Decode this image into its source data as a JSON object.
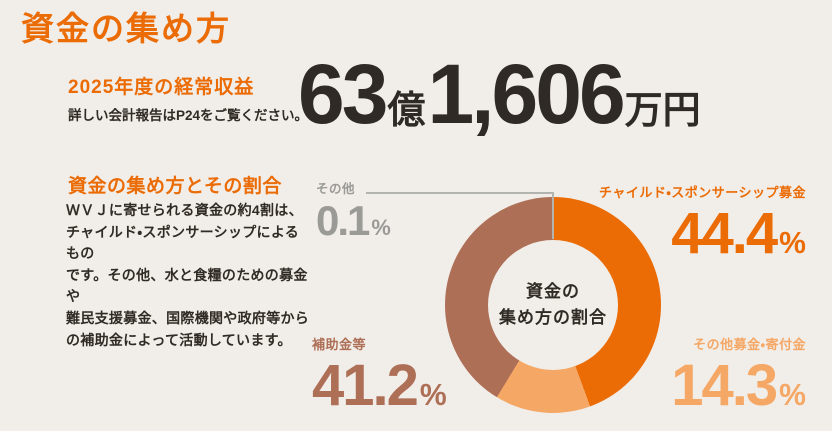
{
  "title": "資金の集め方",
  "revenue": {
    "heading": "2025年度の経常収益",
    "note": "詳しい会計報告はP24をご覧ください。",
    "amount_parts": [
      {
        "text": "63"
      },
      {
        "text": "億"
      },
      {
        "text": "1,606"
      },
      {
        "text": "万円"
      }
    ]
  },
  "breakdown": {
    "heading": "資金の集め方とその割合",
    "body": "ＷＶＪに寄せられる資金の約4割は、\nチャイルド・スポンサーシップによるもの\nです。その他、水と食糧のための募金や\n難民支援募金、国際機関や政府等から\nの補助金によって活動しています。"
  },
  "chart_data": {
    "type": "pie",
    "title": "資金の集め方の割合",
    "center_label": "資金の\n集め方の割合",
    "donut_hole_ratio": 0.6,
    "start_angle_deg": 0,
    "direction": "clockwise",
    "legend_position": "around",
    "segments": [
      {
        "label": "チャイルド・スポンサーシップ募金",
        "value": 44.4,
        "display": "44.4",
        "unit": "%",
        "color": "#eb6b05"
      },
      {
        "label": "その他募金・寄付金",
        "value": 14.3,
        "display": "14.3",
        "unit": "%",
        "color": "#f5a765"
      },
      {
        "label": "補助金等",
        "value": 41.2,
        "display": "41.2",
        "unit": "%",
        "color": "#ae6f57"
      },
      {
        "label": "その他",
        "value": 0.1,
        "display": "0.1",
        "unit": "%",
        "color": "#9a9a97"
      }
    ]
  },
  "colors": {
    "background": "#f1ede8",
    "accent_orange": "#eb6b05",
    "dark_text": "#312b25",
    "leader_line": "#b3b3b0"
  }
}
